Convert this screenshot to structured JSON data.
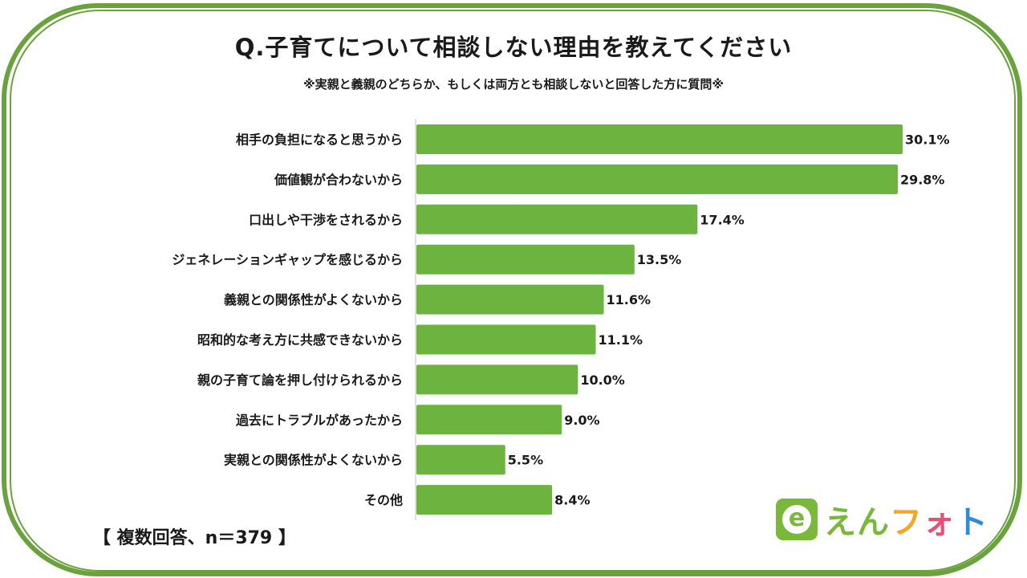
{
  "title": "Q.子育てについて相談しない理由を教えてください",
  "subtitle": "※実親と義親のどちらか、もしくは両方とも相談しないと回答した方に質問※",
  "footnote": "【 複数回答、n＝379 】",
  "logo": {
    "mark_letter": "e",
    "text_chars": [
      "え",
      "ん",
      "フ",
      "ォ",
      "ト"
    ],
    "text_colors": [
      "#7ab83a",
      "#7ab83a",
      "#f5a623",
      "#e94e77",
      "#2e8bd8"
    ],
    "mark_color": "#7ab83a"
  },
  "colors": {
    "bar": "#6db33f",
    "frame": "#6aa33d",
    "axis": "#bfbfbf"
  },
  "chart_data": {
    "type": "bar",
    "orientation": "horizontal",
    "categories": [
      "相手の負担になると思うから",
      "価値観が合わないから",
      "口出しや干渉をされるから",
      "ジェネレーションギャップを感じるから",
      "義親との関係性がよくないから",
      "昭和的な考え方に共感できないから",
      "親の子育て論を押し付けられるから",
      "過去にトラブルがあったから",
      "実親との関係性がよくないから",
      "その他"
    ],
    "values": [
      30.1,
      29.8,
      17.4,
      13.5,
      11.6,
      11.1,
      10.0,
      9.0,
      5.5,
      8.4
    ],
    "value_labels": [
      "30.1%",
      "29.8%",
      "17.4%",
      "13.5%",
      "11.6%",
      "11.1%",
      "10.0%",
      "9.0%",
      "5.5%",
      "8.4%"
    ],
    "xlim": [
      0,
      30.1
    ],
    "grid": false,
    "legend": "none"
  }
}
